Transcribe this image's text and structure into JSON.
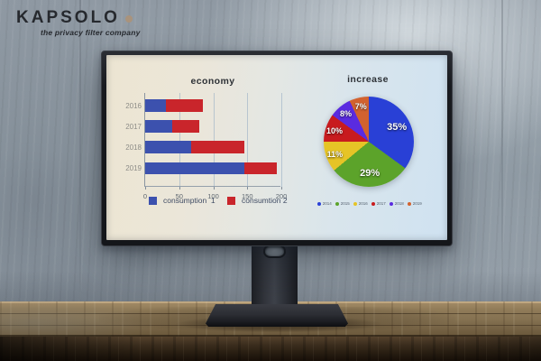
{
  "brand": {
    "name": "KAPSOLO",
    "tagline": "the privacy filter company",
    "dot_color": "#a9937c"
  },
  "chart_data": [
    {
      "type": "bar",
      "orientation": "horizontal",
      "stacked": true,
      "title": "economy",
      "categories": [
        "2016",
        "2017",
        "2018",
        "2019"
      ],
      "series": [
        {
          "name": "consumption  1",
          "color": "#3c51ae",
          "values": [
            30,
            40,
            68,
            146
          ]
        },
        {
          "name": "consumtion 2",
          "color": "#c9252b",
          "values": [
            55,
            40,
            78,
            47
          ]
        }
      ],
      "xlim": [
        0,
        200
      ],
      "xticks": [
        0,
        50,
        100,
        150,
        200
      ],
      "grid": true,
      "legend_position": "bottom"
    },
    {
      "type": "pie",
      "title": "increase",
      "start_angle_deg": 0,
      "direction": "clockwise",
      "slices": [
        {
          "label": "2014",
          "value": 35,
          "display": "35%",
          "color": "#2940d6"
        },
        {
          "label": "2015",
          "value": 29,
          "display": "29%",
          "color": "#5ca32a"
        },
        {
          "label": "2016",
          "value": 11,
          "display": "11%",
          "color": "#e6c426"
        },
        {
          "label": "2017",
          "value": 10,
          "display": "10%",
          "color": "#c81b1e"
        },
        {
          "label": "2018",
          "value": 8,
          "display": "8%",
          "color": "#5a2be0"
        },
        {
          "label": "2019",
          "value": 7,
          "display": "7%",
          "color": "#d2622f"
        }
      ],
      "legend_position": "bottom"
    }
  ]
}
